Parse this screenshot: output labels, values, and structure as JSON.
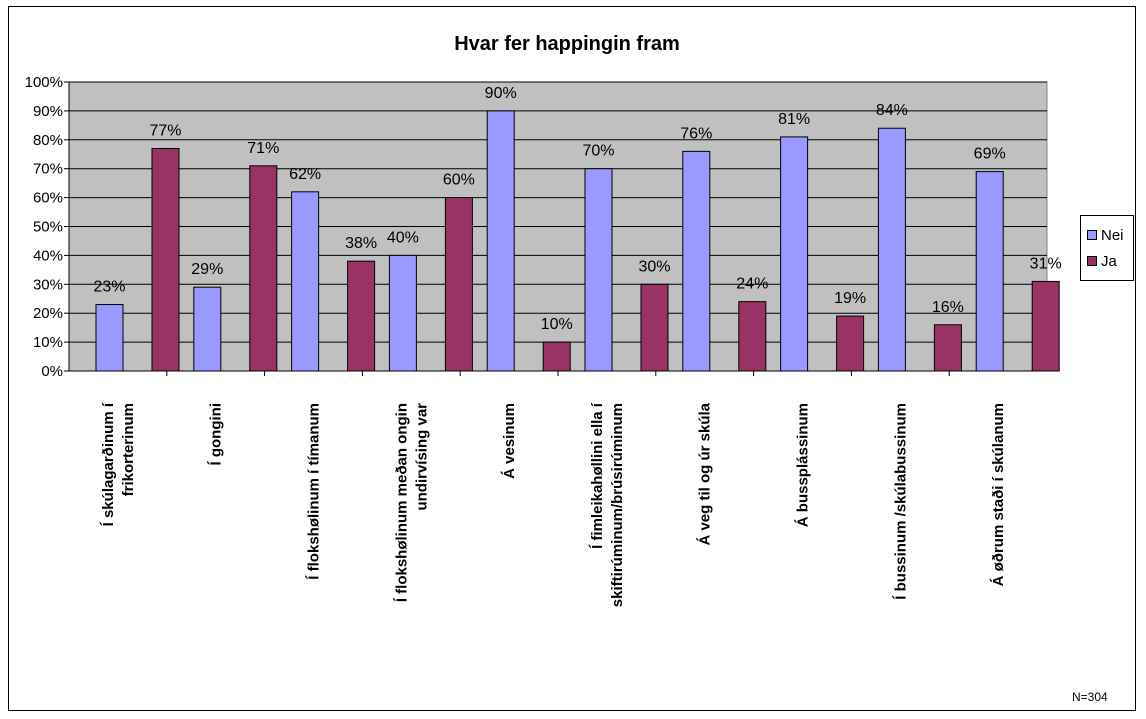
{
  "chart_data": {
    "type": "bar",
    "title": "Hvar fer happingin fram",
    "categories": [
      [
        "Í skúlagarðinum í",
        "frikorterinum"
      ],
      [
        "Í gongini"
      ],
      [
        "Í flokshølinum í tímanum"
      ],
      [
        "Í flokshølinum meðan ongin",
        "undirvísing var"
      ],
      [
        "Á vesinum"
      ],
      [
        "Í fimleikahøllini ella í",
        "skiftirúminum/brúsirúminum"
      ],
      [
        "Á veg til og úr skúla"
      ],
      [
        "Á bussplássinum"
      ],
      [
        "Í bussinum /skúlabussinum"
      ],
      [
        "Á øðrum staði í skúlanum"
      ]
    ],
    "series": [
      {
        "name": "Nei",
        "color": "#9999ff",
        "values": [
          23,
          29,
          62,
          40,
          90,
          70,
          76,
          81,
          84,
          69
        ],
        "labels": [
          "23%",
          "29%",
          "62%",
          "40%",
          "90%",
          "70%",
          "76%",
          "81%",
          "84%",
          "69%"
        ]
      },
      {
        "name": "Ja",
        "color": "#993366",
        "values": [
          77,
          71,
          38,
          60,
          10,
          30,
          24,
          19,
          16,
          31
        ],
        "labels": [
          "77%",
          "71%",
          "38%",
          "60%",
          "10%",
          "30%",
          "24%",
          "19%",
          "16%",
          "31%"
        ]
      }
    ],
    "ylim": [
      0,
      100
    ],
    "yticks": [
      "0%",
      "10%",
      "20%",
      "30%",
      "40%",
      "50%",
      "60%",
      "70%",
      "80%",
      "90%",
      "100%"
    ],
    "grid": true,
    "legend_position": "right",
    "plot_background": "#c0c0c0"
  },
  "note": "N=304"
}
